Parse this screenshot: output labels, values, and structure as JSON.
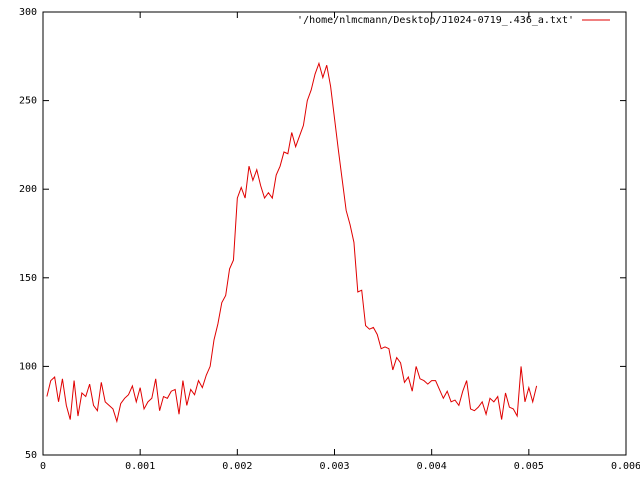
{
  "chart_data": {
    "type": "line",
    "x": [
      4e-05,
      8e-05,
      0.00012,
      0.00016,
      0.0002,
      0.00024,
      0.00028,
      0.00032,
      0.00036,
      0.0004,
      0.00044,
      0.00048,
      0.00052,
      0.00056,
      0.0006,
      0.00064,
      0.00068,
      0.00072,
      0.00076,
      0.0008,
      0.00084,
      0.00088,
      0.00092,
      0.00096,
      0.001,
      0.00104,
      0.00108,
      0.00112,
      0.00116,
      0.0012,
      0.00124,
      0.00128,
      0.00132,
      0.00136,
      0.0014,
      0.00144,
      0.00148,
      0.00152,
      0.00156,
      0.0016,
      0.00164,
      0.00168,
      0.00172,
      0.00176,
      0.0018,
      0.00184,
      0.00188,
      0.00192,
      0.00196,
      0.002,
      0.00204,
      0.00208,
      0.00212,
      0.00216,
      0.0022,
      0.00224,
      0.00228,
      0.00232,
      0.00236,
      0.0024,
      0.00244,
      0.00248,
      0.00252,
      0.00256,
      0.0026,
      0.00264,
      0.00268,
      0.00272,
      0.00276,
      0.0028,
      0.00284,
      0.00288,
      0.00292,
      0.00296,
      0.003,
      0.00304,
      0.00308,
      0.00312,
      0.00316,
      0.0032,
      0.00324,
      0.00328,
      0.00332,
      0.00336,
      0.0034,
      0.00344,
      0.00348,
      0.00352,
      0.00356,
      0.0036,
      0.00364,
      0.00368,
      0.00372,
      0.00376,
      0.0038,
      0.00384,
      0.00388,
      0.00392,
      0.00396,
      0.004,
      0.00404,
      0.00408,
      0.00412,
      0.00416,
      0.0042,
      0.00424,
      0.00428,
      0.00432,
      0.00436,
      0.0044,
      0.00444,
      0.00448,
      0.00452,
      0.00456,
      0.0046,
      0.00464,
      0.00468,
      0.00472,
      0.00476,
      0.0048,
      0.00484,
      0.00488,
      0.00492,
      0.00496,
      0.005,
      0.00504,
      0.00508
    ],
    "series": [
      {
        "name": "'/home/nlmcmann/Desktop/J1024-0719_.436_a.txt'",
        "color": "#e00000",
        "values": [
          83,
          92,
          94,
          80,
          93,
          78,
          70,
          92,
          72,
          85,
          83,
          90,
          78,
          75,
          91,
          80,
          78,
          76,
          69,
          79,
          82,
          84,
          89,
          80,
          88,
          76,
          80,
          82,
          93,
          75,
          83,
          82,
          86,
          87,
          73,
          92,
          78,
          87,
          84,
          92,
          88,
          95,
          100,
          115,
          124,
          136,
          140,
          155,
          160,
          195,
          201,
          195,
          213,
          205,
          211,
          202,
          195,
          198,
          195,
          208,
          213,
          221,
          220,
          232,
          224,
          230,
          236,
          250,
          256,
          265,
          271,
          263,
          270,
          258,
          240,
          222,
          205,
          188,
          180,
          170,
          142,
          143,
          123,
          121,
          122,
          118,
          110,
          111,
          110,
          98,
          105,
          102,
          91,
          94,
          86,
          100,
          93,
          92,
          90,
          92,
          92,
          87,
          82,
          86,
          80,
          81,
          78,
          86,
          92,
          76,
          75,
          77,
          80,
          73,
          82,
          80,
          83,
          70,
          85,
          77,
          76,
          72,
          100,
          80,
          88,
          80,
          89
        ]
      }
    ],
    "xlim": [
      0,
      0.006
    ],
    "xticks": [
      0,
      0.001,
      0.002,
      0.003,
      0.004,
      0.005,
      0.006
    ],
    "ylim": [
      50,
      300
    ],
    "yticks": [
      50,
      100,
      150,
      200,
      250,
      300
    ],
    "legend": "top-right"
  }
}
